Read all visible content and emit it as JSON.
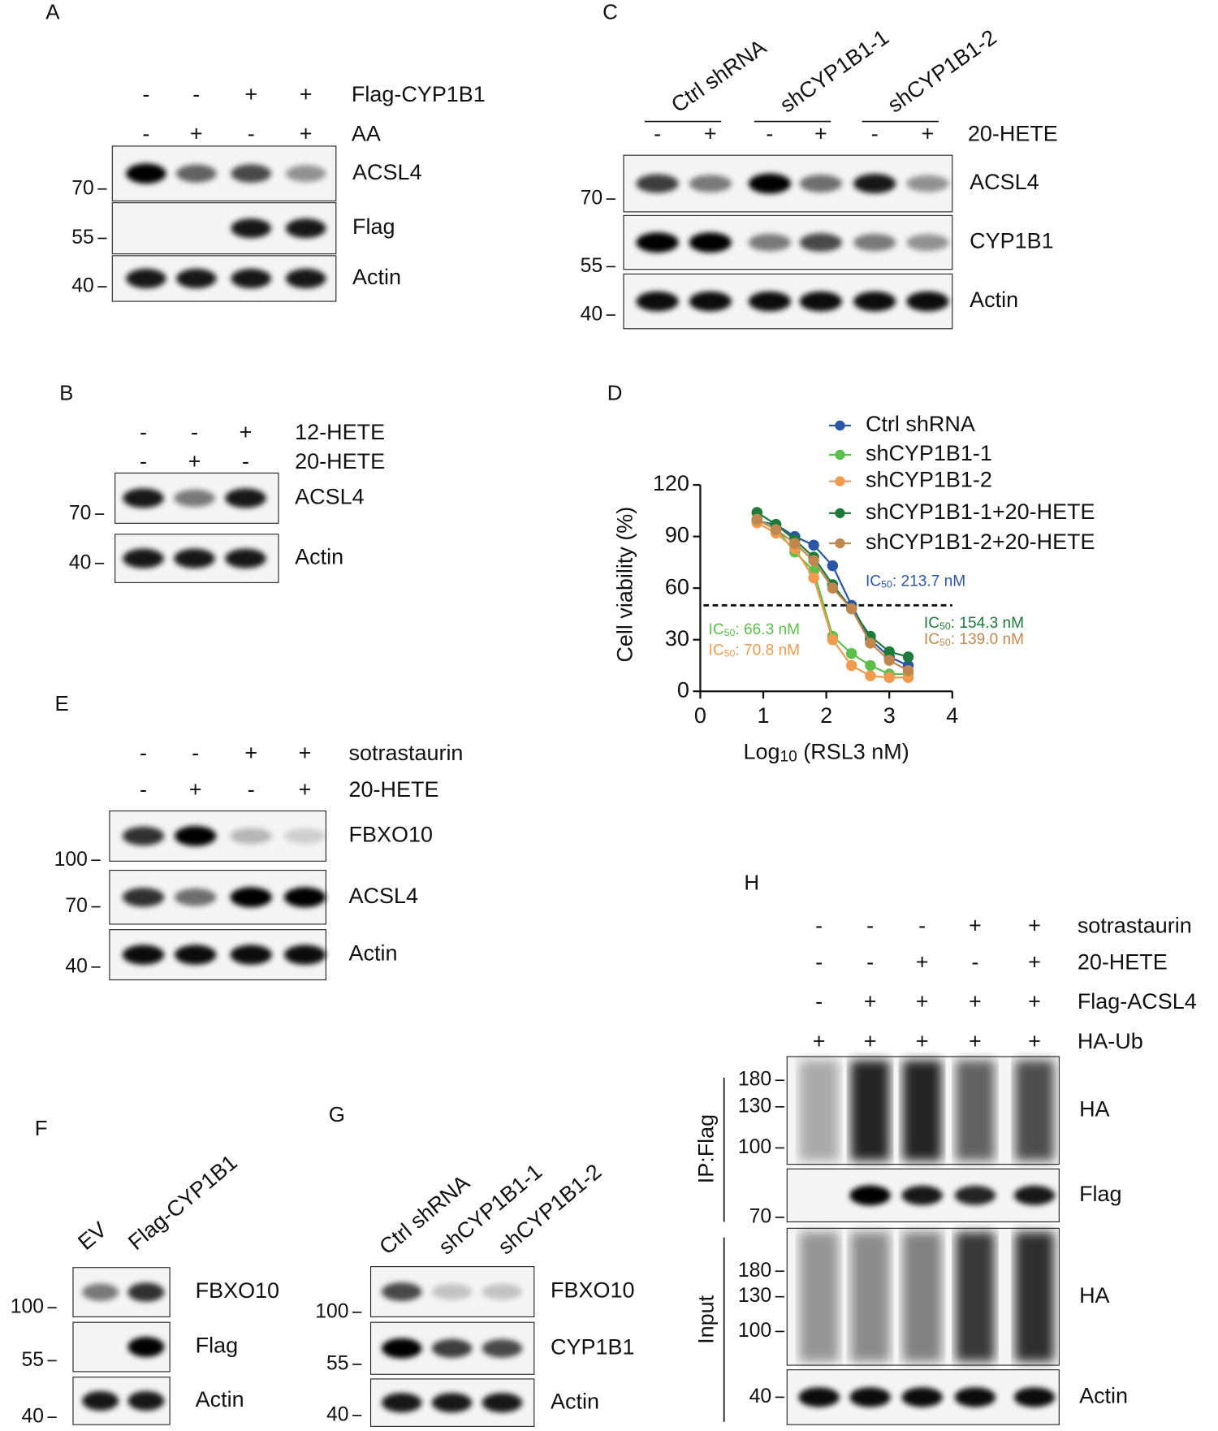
{
  "panels": [
    {
      "letter": "A",
      "conditions": [
        {
          "label": "Flag-CYP1B1",
          "signs": [
            "-",
            "-",
            "+",
            "+"
          ]
        },
        {
          "label": "AA",
          "signs": [
            "-",
            "+",
            "-",
            "+"
          ]
        }
      ],
      "blots": [
        {
          "label": "ACSL4"
        },
        {
          "label": "Flag"
        },
        {
          "label": "Actin"
        }
      ],
      "markers": [
        70,
        55,
        40
      ]
    },
    {
      "letter": "B",
      "conditions": [
        {
          "label": "12-HETE",
          "signs": [
            "-",
            "-",
            "+"
          ]
        },
        {
          "label": "20-HETE",
          "signs": [
            "-",
            "+",
            "-"
          ]
        }
      ],
      "blots": [
        {
          "label": "ACSL4"
        },
        {
          "label": "Actin"
        }
      ],
      "markers": [
        70,
        40
      ]
    },
    {
      "letter": "C",
      "groups": [
        "Ctrl shRNA",
        "shCYP1B1-1",
        "shCYP1B1-2"
      ],
      "conditions": [
        {
          "label": "20-HETE",
          "signs": [
            "-",
            "+",
            "-",
            "+",
            "-",
            "+"
          ]
        }
      ],
      "blots": [
        {
          "label": "ACSL4"
        },
        {
          "label": "CYP1B1"
        },
        {
          "label": "Actin"
        }
      ],
      "markers": [
        70,
        55,
        40
      ]
    },
    {
      "letter": "E",
      "conditions": [
        {
          "label": "sotrastaurin",
          "signs": [
            "-",
            "-",
            "+",
            "+"
          ]
        },
        {
          "label": "20-HETE",
          "signs": [
            "-",
            "+",
            "-",
            "+"
          ]
        }
      ],
      "blots": [
        {
          "label": "FBXO10"
        },
        {
          "label": "ACSL4"
        },
        {
          "label": "Actin"
        }
      ],
      "markers": [
        100,
        70,
        40
      ]
    },
    {
      "letter": "F",
      "lane_labels": [
        "EV",
        "Flag-CYP1B1"
      ],
      "blots": [
        {
          "label": "FBXO10"
        },
        {
          "label": "Flag"
        },
        {
          "label": "Actin"
        }
      ],
      "markers": [
        100,
        55,
        40
      ]
    },
    {
      "letter": "G",
      "lane_labels": [
        "Ctrl shRNA",
        "shCYP1B1-1",
        "shCYP1B1-2"
      ],
      "blots": [
        {
          "label": "FBXO10"
        },
        {
          "label": "CYP1B1"
        },
        {
          "label": "Actin"
        }
      ],
      "markers": [
        100,
        55,
        40
      ]
    },
    {
      "letter": "H",
      "conditions": [
        {
          "label": "sotrastaurin",
          "signs": [
            "-",
            "-",
            "-",
            "+",
            "+"
          ]
        },
        {
          "label": "20-HETE",
          "signs": [
            "-",
            "-",
            "+",
            "-",
            "+"
          ]
        },
        {
          "label": "Flag-ACSL4",
          "signs": [
            "-",
            "+",
            "+",
            "+",
            "+"
          ]
        },
        {
          "label": "HA-Ub",
          "signs": [
            "+",
            "+",
            "+",
            "+",
            "+"
          ]
        }
      ],
      "side_groups": [
        "IP:Flag",
        "Input"
      ],
      "blots": [
        {
          "label": "HA"
        },
        {
          "label": "Flag"
        },
        {
          "label": "HA"
        },
        {
          "label": "Actin"
        }
      ],
      "markers": [
        180,
        130,
        100,
        70,
        180,
        130,
        100,
        40
      ]
    }
  ],
  "chart_data": {
    "type": "line",
    "letter": "D",
    "ylabel": "Cell viability (%)",
    "xlabel_parts": [
      "Log",
      "10",
      " (RSL3 nM)"
    ],
    "x": [
      0.9,
      1.2,
      1.5,
      1.8,
      2.1,
      2.4,
      2.7,
      3.0,
      3.3
    ],
    "series": [
      {
        "name": "Ctrl shRNA",
        "color": "#2a56a8",
        "values": [
          99,
          97,
          90,
          85,
          73,
          50,
          30,
          20,
          15
        ]
      },
      {
        "name": "shCYP1B1-1",
        "color": "#5dbf4b",
        "values": [
          100,
          95,
          81,
          70,
          32,
          22,
          15,
          10,
          10
        ]
      },
      {
        "name": "shCYP1B1-2",
        "color": "#f09a4e",
        "values": [
          98,
          92,
          83,
          66,
          30,
          15,
          9,
          8,
          8
        ]
      },
      {
        "name": "shCYP1B1-1+20-HETE",
        "color": "#1e7a3a",
        "values": [
          104,
          97,
          88,
          78,
          62,
          48,
          32,
          23,
          20
        ]
      },
      {
        "name": "shCYP1B1-2+20-HETE",
        "color": "#c08850",
        "values": [
          100,
          94,
          86,
          76,
          60,
          48,
          28,
          18,
          12
        ]
      }
    ],
    "reference_line": 50,
    "annotations": [
      {
        "parts": [
          "IC",
          "50",
          ": 213.7 nM"
        ],
        "color": "#2a56a8"
      },
      {
        "parts": [
          "IC",
          "50",
          ": 154.3 nM"
        ],
        "color": "#1e7a3a"
      },
      {
        "parts": [
          "IC",
          "50",
          ": 139.0 nM"
        ],
        "color": "#c08850"
      },
      {
        "parts": [
          "IC",
          "50",
          ": 66.3 nM"
        ],
        "color": "#5dbf4b"
      },
      {
        "parts": [
          "IC",
          "50",
          ": 70.8 nM"
        ],
        "color": "#f09a4e"
      }
    ],
    "xlim": [
      0,
      4
    ],
    "xticks": [
      0,
      1,
      2,
      3,
      4
    ],
    "ylim": [
      0,
      120
    ],
    "yticks": [
      0,
      30,
      60,
      90,
      120
    ]
  }
}
